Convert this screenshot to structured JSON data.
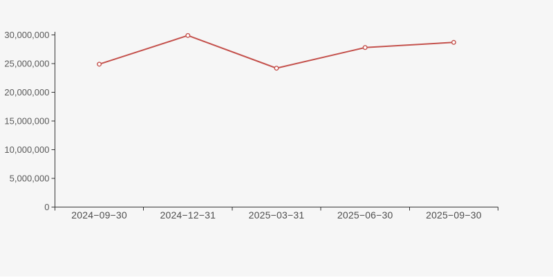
{
  "chart_data": {
    "type": "line",
    "title": "",
    "xlabel": "",
    "ylabel": "",
    "categories": [
      "2024−09−30",
      "2024−12−31",
      "2025−03−31",
      "2025−06−30",
      "2025−09−30"
    ],
    "values": [
      24900000,
      29900000,
      24200000,
      27800000,
      28700000
    ],
    "ylim": [
      0,
      30000000
    ],
    "ytick_step": 5000000,
    "ytick_labels": [
      "0",
      "5,000,000",
      "10,000,000",
      "15,000,000",
      "20,000,000",
      "25,000,000",
      "30,000,000"
    ],
    "grid": false,
    "legend": null,
    "marker": "hollow-circle"
  },
  "colors": {
    "background": "#f6f6f6",
    "line": "#c4514c",
    "marker_fill": "#ffffff",
    "axis": "#333333",
    "y_label_text": "#595959",
    "x_label_text": "#4d4d4d"
  }
}
